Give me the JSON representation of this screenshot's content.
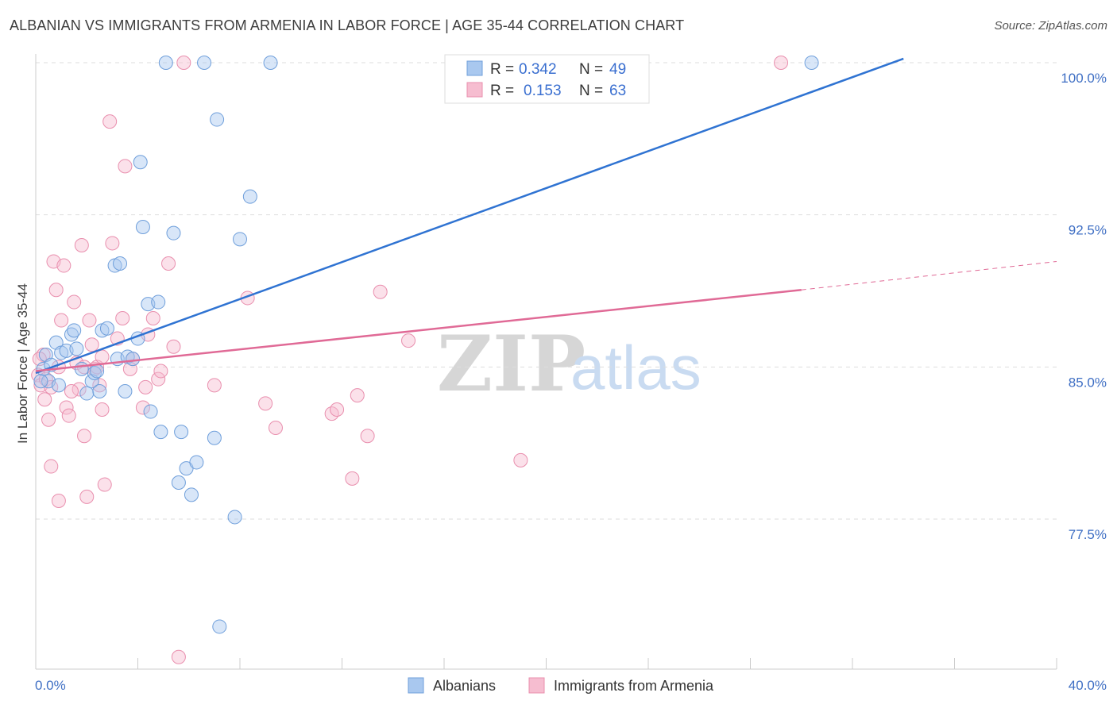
{
  "header": {
    "title": "ALBANIAN VS IMMIGRANTS FROM ARMENIA IN LABOR FORCE | AGE 35-44 CORRELATION CHART",
    "source": "Source: ZipAtlas.com"
  },
  "watermark": {
    "zip": "ZIP",
    "atlas": "atlas"
  },
  "chart_data": {
    "type": "scatter",
    "title": "ALBANIAN VS IMMIGRANTS FROM ARMENIA IN LABOR FORCE | AGE 35-44 CORRELATION CHART",
    "xlabel": "",
    "ylabel": "In Labor Force | Age 35-44",
    "xlim": [
      0,
      40
    ],
    "ylim": [
      70.5,
      101.5
    ],
    "x_tick_labels": [
      "0.0%",
      "40.0%"
    ],
    "y_ticks": [
      77.5,
      85.0,
      92.5,
      100.0
    ],
    "y_tick_labels": [
      "77.5%",
      "85.0%",
      "92.5%",
      "100.0%"
    ],
    "grid": true,
    "legend": {
      "position": "top-center",
      "entries": [
        {
          "r_label": "R =",
          "r_value": "0.342",
          "n_label": "N =",
          "n_value": "49"
        },
        {
          "r_label": "R =",
          "r_value": "0.153",
          "n_label": "N =",
          "n_value": "63"
        }
      ]
    },
    "bottom_legend": [
      "Albanians",
      "Immigrants from Armenia"
    ],
    "colors": {
      "blue_fill": "#a9c8ef",
      "blue_stroke": "#6f9fdb",
      "blue_line": "#2f73d2",
      "pink_fill": "#f6bdd0",
      "pink_stroke": "#e98fae",
      "pink_line": "#e06a96",
      "grid": "#dddddd",
      "axis_label": "#3f6fc4"
    },
    "series": [
      {
        "name": "Albanians",
        "trend": {
          "x0": 0.0,
          "y0": 84.7,
          "x1": 34.0,
          "y1": 100.2,
          "dashed_to": null
        },
        "points": [
          [
            0.3,
            84.9
          ],
          [
            0.4,
            85.6
          ],
          [
            0.5,
            84.3
          ],
          [
            0.6,
            85.1
          ],
          [
            0.8,
            86.2
          ],
          [
            1.0,
            85.7
          ],
          [
            1.2,
            85.8
          ],
          [
            1.4,
            86.6
          ],
          [
            1.5,
            86.8
          ],
          [
            1.6,
            85.9
          ],
          [
            2.0,
            83.7
          ],
          [
            2.2,
            84.3
          ],
          [
            2.3,
            84.7
          ],
          [
            2.5,
            83.8
          ],
          [
            2.6,
            86.8
          ],
          [
            2.8,
            86.9
          ],
          [
            3.1,
            90.0
          ],
          [
            3.2,
            85.4
          ],
          [
            3.3,
            90.1
          ],
          [
            3.5,
            83.8
          ],
          [
            3.6,
            85.5
          ],
          [
            3.8,
            85.4
          ],
          [
            4.0,
            86.4
          ],
          [
            4.1,
            95.1
          ],
          [
            4.2,
            91.9
          ],
          [
            4.4,
            88.1
          ],
          [
            4.5,
            82.8
          ],
          [
            4.8,
            88.2
          ],
          [
            4.9,
            81.8
          ],
          [
            5.1,
            100.0
          ],
          [
            5.4,
            91.6
          ],
          [
            5.6,
            79.3
          ],
          [
            5.7,
            81.8
          ],
          [
            5.9,
            80.0
          ],
          [
            6.1,
            78.7
          ],
          [
            6.3,
            80.3
          ],
          [
            6.6,
            100.0
          ],
          [
            7.0,
            81.5
          ],
          [
            7.1,
            97.2
          ],
          [
            7.2,
            72.2
          ],
          [
            7.8,
            77.6
          ],
          [
            8.0,
            91.3
          ],
          [
            8.4,
            93.4
          ],
          [
            9.2,
            100.0
          ],
          [
            30.4,
            100.0
          ],
          [
            1.8,
            84.9
          ],
          [
            2.4,
            84.8
          ],
          [
            0.2,
            84.3
          ],
          [
            0.9,
            84.1
          ]
        ]
      },
      {
        "name": "Immigrants from Armenia",
        "trend": {
          "x0": 0.0,
          "y0": 84.8,
          "x1": 30.0,
          "y1": 88.8,
          "dashed_to": [
            40.0,
            90.2
          ]
        },
        "points": [
          [
            0.1,
            84.6
          ],
          [
            0.2,
            84.1
          ],
          [
            0.3,
            85.6
          ],
          [
            0.35,
            83.4
          ],
          [
            0.4,
            84.4
          ],
          [
            0.5,
            82.4
          ],
          [
            0.6,
            84.0
          ],
          [
            0.7,
            90.2
          ],
          [
            0.8,
            88.8
          ],
          [
            0.9,
            85.0
          ],
          [
            1.0,
            87.3
          ],
          [
            1.1,
            90.0
          ],
          [
            1.2,
            83.0
          ],
          [
            1.3,
            82.6
          ],
          [
            1.5,
            88.2
          ],
          [
            1.6,
            85.2
          ],
          [
            1.7,
            83.9
          ],
          [
            1.8,
            91.0
          ],
          [
            1.9,
            81.6
          ],
          [
            2.0,
            78.6
          ],
          [
            2.1,
            87.3
          ],
          [
            2.2,
            86.1
          ],
          [
            2.3,
            84.9
          ],
          [
            2.4,
            85.0
          ],
          [
            2.5,
            84.1
          ],
          [
            2.6,
            82.9
          ],
          [
            2.7,
            79.2
          ],
          [
            2.9,
            97.1
          ],
          [
            3.0,
            91.1
          ],
          [
            3.2,
            86.4
          ],
          [
            3.4,
            87.4
          ],
          [
            3.5,
            94.9
          ],
          [
            3.8,
            85.4
          ],
          [
            4.2,
            83.0
          ],
          [
            4.3,
            84.0
          ],
          [
            4.4,
            86.6
          ],
          [
            4.6,
            87.4
          ],
          [
            4.8,
            84.4
          ],
          [
            4.9,
            84.8
          ],
          [
            5.2,
            90.1
          ],
          [
            5.4,
            86.0
          ],
          [
            5.6,
            70.7
          ],
          [
            5.8,
            100.0
          ],
          [
            7.0,
            84.1
          ],
          [
            8.3,
            88.4
          ],
          [
            9.0,
            83.2
          ],
          [
            9.4,
            82.0
          ],
          [
            11.6,
            82.7
          ],
          [
            11.8,
            82.9
          ],
          [
            12.4,
            79.5
          ],
          [
            12.6,
            83.6
          ],
          [
            13.0,
            81.6
          ],
          [
            13.5,
            88.7
          ],
          [
            14.6,
            86.3
          ],
          [
            19.0,
            80.4
          ],
          [
            29.2,
            100.0
          ],
          [
            0.6,
            80.1
          ],
          [
            0.9,
            78.4
          ],
          [
            1.4,
            83.8
          ],
          [
            2.6,
            85.5
          ],
          [
            0.15,
            85.4
          ],
          [
            1.9,
            85.0
          ],
          [
            3.7,
            84.9
          ]
        ]
      }
    ]
  }
}
